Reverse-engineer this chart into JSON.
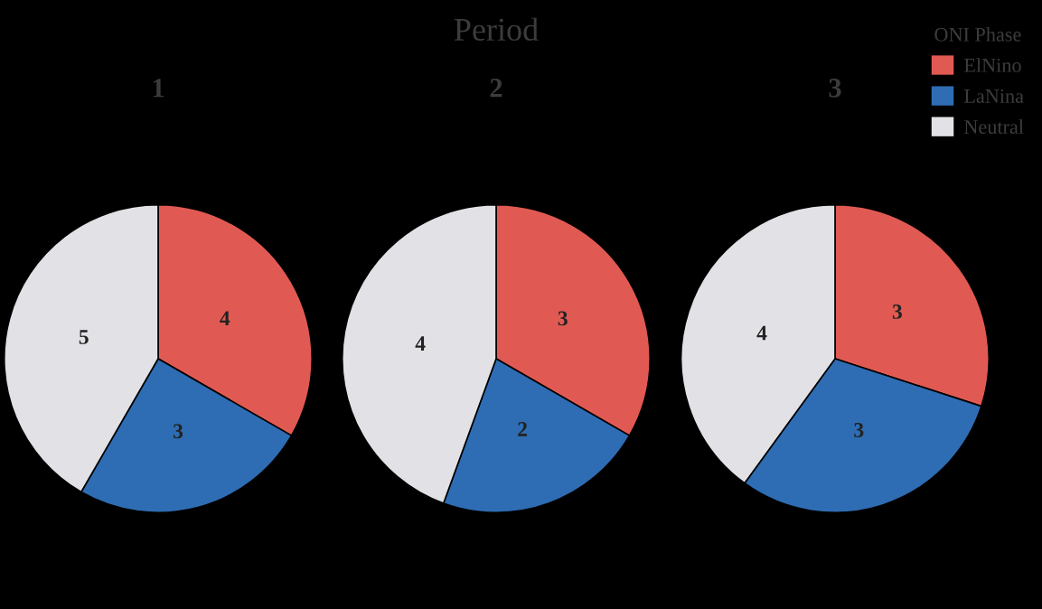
{
  "chart_data": [
    {
      "type": "pie",
      "title": "1",
      "annotations": [
        "Period"
      ],
      "categories": [
        "ElNino",
        "LaNina",
        "Neutral"
      ],
      "values": [
        4,
        3,
        5
      ],
      "colors": [
        "#e05a53",
        "#2e6db4",
        "#e2e2e6"
      ],
      "data_labels": true,
      "legend": "top right",
      "legend_title": "ONI Phase"
    },
    {
      "type": "pie",
      "title": "2",
      "values": [
        3,
        2,
        4
      ],
      "colors": [
        "#e05a53",
        "#2e6db4",
        "#e2e2e6"
      ],
      "data_labels": true
    },
    {
      "type": "pie",
      "title": "3",
      "values": [
        3,
        3,
        4
      ],
      "colors": [
        "#e05a53",
        "#2e6db4",
        "#e2e2e6"
      ],
      "data_labels": true
    }
  ]
}
